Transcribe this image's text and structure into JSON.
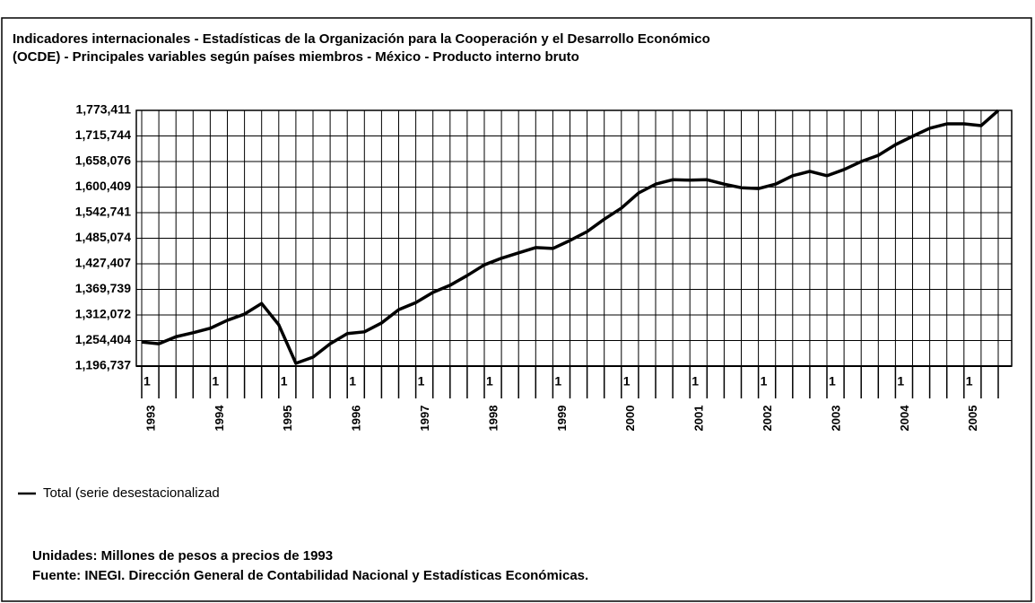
{
  "chart_data": {
    "type": "line",
    "title": [
      "Indicadores internacionales - Estadísticas de la Organización para la Cooperación y el Desarrollo Económico",
      "(OCDE) - Principales variables según países miembros - México - Producto interno bruto"
    ],
    "categories": [
      "1993",
      null,
      null,
      null,
      "1994",
      null,
      null,
      null,
      "1995",
      null,
      null,
      null,
      "1996",
      null,
      null,
      null,
      "1997",
      null,
      null,
      null,
      "1998",
      null,
      null,
      null,
      "1999",
      null,
      null,
      null,
      "2000",
      null,
      null,
      null,
      "2001",
      null,
      null,
      null,
      "2002",
      null,
      null,
      null,
      "2003",
      null,
      null,
      null,
      "2004",
      null,
      null,
      null,
      "2005",
      null,
      null
    ],
    "period_labels": [
      "1",
      null,
      null,
      null,
      "1",
      null,
      null,
      null,
      "1",
      null,
      null,
      null,
      "1",
      null,
      null,
      null,
      "1",
      null,
      null,
      null,
      "1",
      null,
      null,
      null,
      "1",
      null,
      null,
      null,
      "1",
      null,
      null,
      null,
      "1",
      null,
      null,
      null,
      "1",
      null,
      null,
      null,
      "1",
      null,
      null,
      null,
      "1",
      null,
      null,
      null,
      "1",
      null,
      null
    ],
    "series": [
      {
        "name": "Total (serie desestacionalizad",
        "color": "#000000",
        "values": [
          1251000,
          1247000,
          1263000,
          1272000,
          1282000,
          1300000,
          1314000,
          1338000,
          1290000,
          1203000,
          1217000,
          1247000,
          1270000,
          1274000,
          1294000,
          1324000,
          1340000,
          1363000,
          1379000,
          1401000,
          1425000,
          1440000,
          1452000,
          1464000,
          1462000,
          1480000,
          1500000,
          1528000,
          1553000,
          1587000,
          1607000,
          1617000,
          1616000,
          1617000,
          1607000,
          1599000,
          1597000,
          1607000,
          1626000,
          1636000,
          1626000,
          1640000,
          1658000,
          1672000,
          1696000,
          1715000,
          1733000,
          1743000,
          1743000,
          1739000,
          1773000
        ]
      }
    ],
    "ylim": [
      1196737,
      1773411
    ],
    "yticks": [
      {
        "value": 1196737,
        "label": "1,196,737"
      },
      {
        "value": 1254404,
        "label": "1,254,404"
      },
      {
        "value": 1312072,
        "label": "1,312,072"
      },
      {
        "value": 1369739,
        "label": "1,369,739"
      },
      {
        "value": 1427407,
        "label": "1,427,407"
      },
      {
        "value": 1485074,
        "label": "1,485,074"
      },
      {
        "value": 1542741,
        "label": "1,542,741"
      },
      {
        "value": 1600409,
        "label": "1,600,409"
      },
      {
        "value": 1658076,
        "label": "1,658,076"
      },
      {
        "value": 1715744,
        "label": "1,715,744"
      },
      {
        "value": 1773411,
        "label": "1,773,411"
      }
    ],
    "grid": true,
    "notes": [
      "Unidades: Millones de pesos a precios de 1993",
      "Fuente: INEGI. Dirección General de Contabilidad Nacional y Estadísticas Económicas."
    ]
  }
}
